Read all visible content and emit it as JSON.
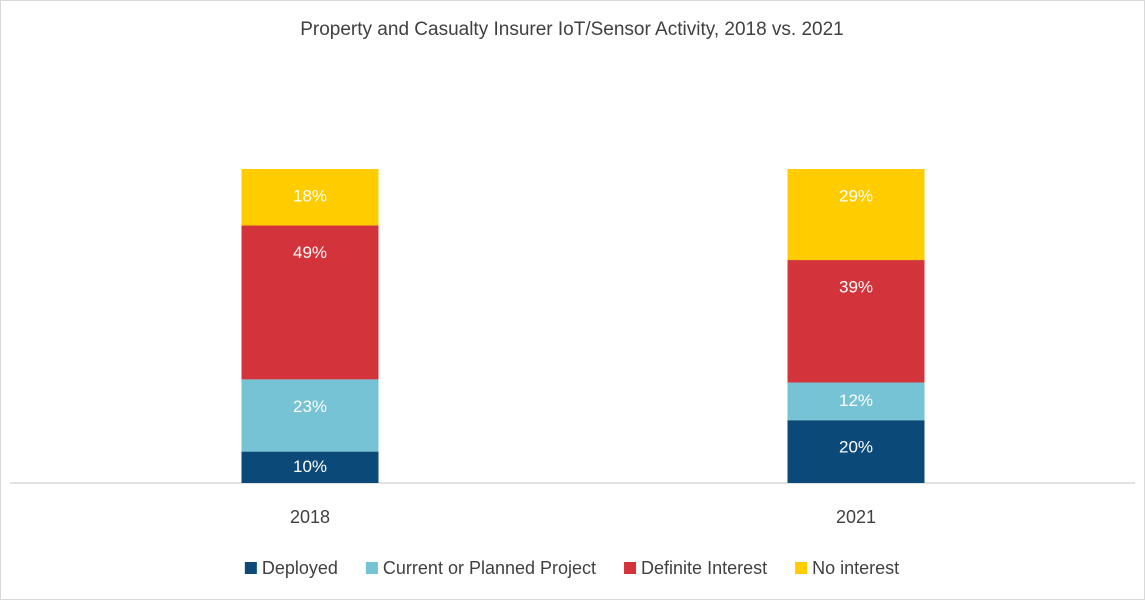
{
  "chart_data": {
    "type": "stacked_bar",
    "title": "Property and Casualty Insurer IoT/Sensor Activity, 2018 vs. 2021",
    "categories": [
      "2018",
      "2021"
    ],
    "series": [
      {
        "name": "Deployed",
        "color": "#0b4a78",
        "values": [
          10,
          20
        ],
        "value_labels": [
          "10%",
          "20%"
        ]
      },
      {
        "name": "Current or Planned Project",
        "color": "#76c3d5",
        "values": [
          23,
          12
        ],
        "value_labels": [
          "23%",
          "12%"
        ]
      },
      {
        "name": "Definite Interest",
        "color": "#d3333a",
        "values": [
          49,
          39
        ],
        "value_labels": [
          "49%",
          "39%"
        ]
      },
      {
        "name": "No interest",
        "color": "#ffcc00",
        "values": [
          18,
          29
        ],
        "value_labels": [
          "18%",
          "29%"
        ]
      }
    ],
    "ylim": [
      0,
      100
    ],
    "legend": "bottom"
  }
}
